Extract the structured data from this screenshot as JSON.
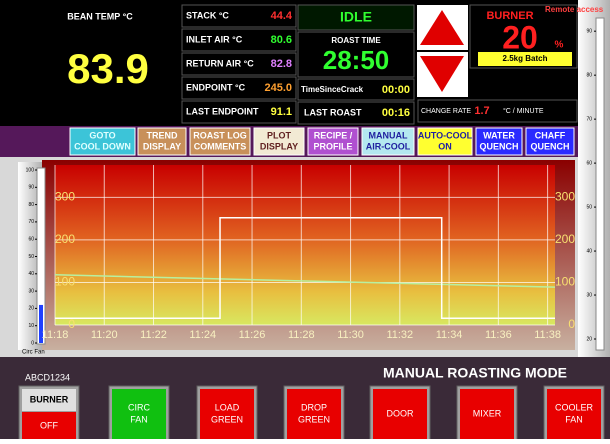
{
  "bean_temp": {
    "label": "BEAN TEMP °C",
    "value": "83.9"
  },
  "readings": [
    {
      "label": "STACK °C",
      "value": "44.4",
      "color": "#ff3030"
    },
    {
      "label": "INLET AIR °C",
      "value": "80.6",
      "color": "#30ff30"
    },
    {
      "label": "RETURN AIR °C",
      "value": "82.8",
      "color": "#e080ff"
    },
    {
      "label": "ENDPOINT °C",
      "value": "245.0",
      "color": "#ffa030"
    },
    {
      "label": "LAST ENDPOINT",
      "value": "91.1",
      "color": "#ffff40"
    }
  ],
  "status": "IDLE",
  "roast_time": {
    "label": "ROAST TIME",
    "value": "28:50"
  },
  "time_since_crack": {
    "label": "TimeSinceCrack",
    "value": "00:00"
  },
  "last_roast": {
    "label": "LAST ROAST",
    "value": "00:16"
  },
  "burner": {
    "label": "BURNER",
    "value": "20",
    "unit": "%"
  },
  "remote": "Remote access",
  "batch": "2.5kg Batch",
  "change_rate": {
    "label": "CHANGE RATE",
    "value": "1.7",
    "unit": "°C / MINUTE"
  },
  "buttons": [
    {
      "lines": [
        "GOTO",
        "COOL DOWN"
      ],
      "bg": "#3cc4d8",
      "fg": "#e0ffff"
    },
    {
      "lines": [
        "TREND",
        "DISPLAY"
      ],
      "bg": "#c8905a",
      "fg": "#ffffff"
    },
    {
      "lines": [
        "ROAST LOG",
        "COMMENTS"
      ],
      "bg": "#c8905a",
      "fg": "#ffffff"
    },
    {
      "lines": [
        "PLOT",
        "DISPLAY"
      ],
      "bg": "#f2ead4",
      "fg": "#602020"
    },
    {
      "lines": [
        "RECIPE /",
        "PROFILE"
      ],
      "bg": "#b050d0",
      "fg": "#ffffff"
    },
    {
      "lines": [
        "MANUAL",
        "AIR-COOL"
      ],
      "bg": "#b4e8f0",
      "fg": "#2020a0"
    },
    {
      "lines": [
        "AUTO-COOL",
        "ON"
      ],
      "bg": "#ffff30",
      "fg": "#2020a0"
    },
    {
      "lines": [
        "WATER",
        "QUENCH"
      ],
      "bg": "#2a2aff",
      "fg": "#ffffff"
    },
    {
      "lines": [
        "CHAFF",
        "QUENCH"
      ],
      "bg": "#2a2aff",
      "fg": "#ffffff"
    }
  ],
  "circ_fan_gauge": {
    "label": "Circ Fan",
    "lim": [
      0,
      100
    ],
    "ticks": [
      100,
      90,
      80,
      70,
      60,
      50,
      40,
      30,
      20,
      10,
      0
    ],
    "value": 22,
    "color": "#2040ff"
  },
  "right_gauge": {
    "lim": [
      17.5,
      93
    ],
    "ticks": [
      90,
      80,
      70,
      60,
      50,
      40,
      30,
      20
    ]
  },
  "chart": {
    "type": "line",
    "xlim": [
      18,
      38.3
    ],
    "ylim": [
      0,
      376
    ],
    "yticks": [
      0,
      100,
      200,
      300
    ],
    "xticks": [
      {
        "value": 18,
        "label": "11:18"
      },
      {
        "value": 20,
        "label": "11:20"
      },
      {
        "value": 22,
        "label": "11:22"
      },
      {
        "value": 24,
        "label": "11:24"
      },
      {
        "value": 26,
        "label": "11:26"
      },
      {
        "value": 28,
        "label": "11:28"
      },
      {
        "value": 30,
        "label": "11:30"
      },
      {
        "value": 32,
        "label": "11:32"
      },
      {
        "value": 34,
        "label": "11:34"
      },
      {
        "value": 36,
        "label": "11:36"
      },
      {
        "value": 38,
        "label": "11:38"
      }
    ],
    "grid": true,
    "series": [
      {
        "color": "#b8f0a0",
        "x": [
          18,
          38.3
        ],
        "values": [
          118,
          89
        ]
      },
      {
        "color": "#ffffff",
        "x": [
          18,
          24.7,
          24.7,
          33.7,
          33.7,
          38.3
        ],
        "values": [
          16,
          16,
          252,
          252,
          16,
          16
        ]
      }
    ]
  },
  "footer": {
    "id": "ABCD1234",
    "mode": "MANUAL ROASTING MODE",
    "buttons": [
      {
        "lines": [
          "BURNER",
          "OFF"
        ],
        "color": "#e80000"
      },
      {
        "lines": [
          "CIRC",
          "FAN"
        ],
        "color": "#10c010"
      },
      {
        "lines": [
          "LOAD",
          "GREEN"
        ],
        "color": "#e80000"
      },
      {
        "lines": [
          "DROP",
          "GREEN"
        ],
        "color": "#e80000"
      },
      {
        "lines": [
          "DOOR"
        ],
        "color": "#e80000"
      },
      {
        "lines": [
          "MIXER"
        ],
        "color": "#e80000"
      },
      {
        "lines": [
          "COOLER",
          "FAN"
        ],
        "color": "#e80000"
      }
    ]
  }
}
